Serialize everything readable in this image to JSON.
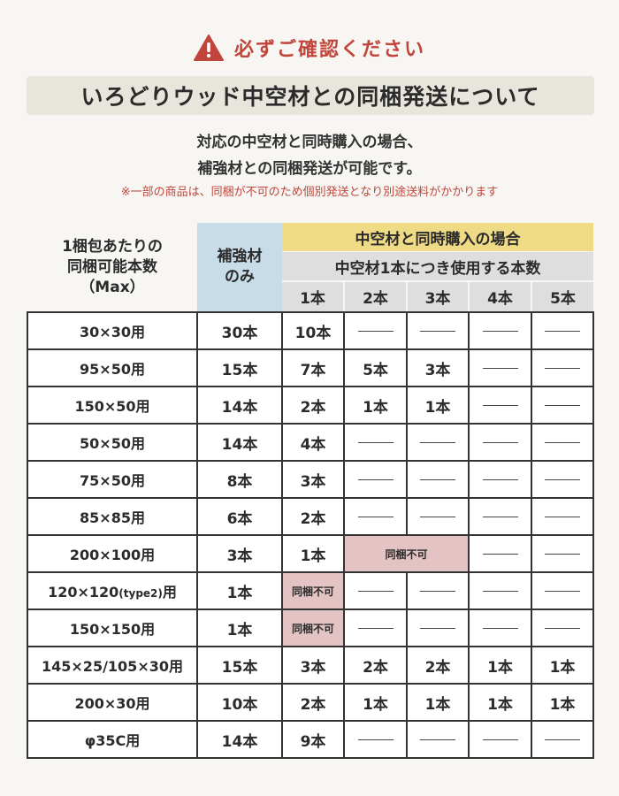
{
  "warning": {
    "text": "必ずご確認ください",
    "icon": "warning-triangle-icon",
    "color": "#c0463c"
  },
  "banner": {
    "title": "いろどりウッド中空材との同梱発送について"
  },
  "description": {
    "line1": "対応の中空材と同時購入の場合、",
    "line2": "補強材との同梱発送が可能です。",
    "note": "※一部の商品は、同梱が不可のため個別発送となり別途送料がかかります"
  },
  "table": {
    "header_left": [
      "1梱包あたりの",
      "同梱可能本数",
      "（Max）"
    ],
    "header_solo": [
      "補強材",
      "のみ"
    ],
    "header_combo": "中空材と同時購入の場合",
    "header_combo_sub": "中空材1本につき使用する本数",
    "counts": [
      "1本",
      "2本",
      "3本",
      "4本",
      "5本"
    ],
    "rows": [
      {
        "name": "30×30用",
        "solo": "30本",
        "c1": "10本",
        "c2": "—",
        "c3": "—",
        "c4": "—",
        "c5": "—"
      },
      {
        "name": "95×50用",
        "solo": "15本",
        "c1": "7本",
        "c2": "5本",
        "c3": "3本",
        "c4": "—",
        "c5": "—"
      },
      {
        "name": "150×50用",
        "solo": "14本",
        "c1": "2本",
        "c2": "1本",
        "c3": "1本",
        "c4": "—",
        "c5": "—"
      },
      {
        "name": "50×50用",
        "solo": "14本",
        "c1": "4本",
        "c2": "—",
        "c3": "—",
        "c4": "—",
        "c5": "—"
      },
      {
        "name": "75×50用",
        "solo": "8本",
        "c1": "3本",
        "c2": "—",
        "c3": "—",
        "c4": "—",
        "c5": "—"
      },
      {
        "name": "85×85用",
        "solo": "6本",
        "c1": "2本",
        "c2": "—",
        "c3": "—",
        "c4": "—",
        "c5": "—"
      },
      {
        "name": "200×100用",
        "solo": "3本",
        "c1": "1本",
        "c23": "同梱不可",
        "c4": "—",
        "c5": "—"
      },
      {
        "name_main": "120×120",
        "name_small": "(type2)",
        "name_end": "用",
        "solo": "1本",
        "c1": "同梱不可",
        "c2": "—",
        "c3": "—",
        "c4": "—",
        "c5": "—"
      },
      {
        "name": "150×150用",
        "solo": "1本",
        "c1": "同梱不可",
        "c2": "—",
        "c3": "—",
        "c4": "—",
        "c5": "—"
      },
      {
        "name": "145×25/105×30用",
        "solo": "15本",
        "c1": "3本",
        "c2": "2本",
        "c3": "2本",
        "c4": "1本",
        "c5": "1本"
      },
      {
        "name": "200×30用",
        "solo": "10本",
        "c1": "2本",
        "c2": "1本",
        "c3": "1本",
        "c4": "1本",
        "c5": "1本"
      },
      {
        "name": "φ35C用",
        "solo": "14本",
        "c1": "9本",
        "c2": "—",
        "c3": "—",
        "c4": "—",
        "c5": "—"
      }
    ]
  }
}
